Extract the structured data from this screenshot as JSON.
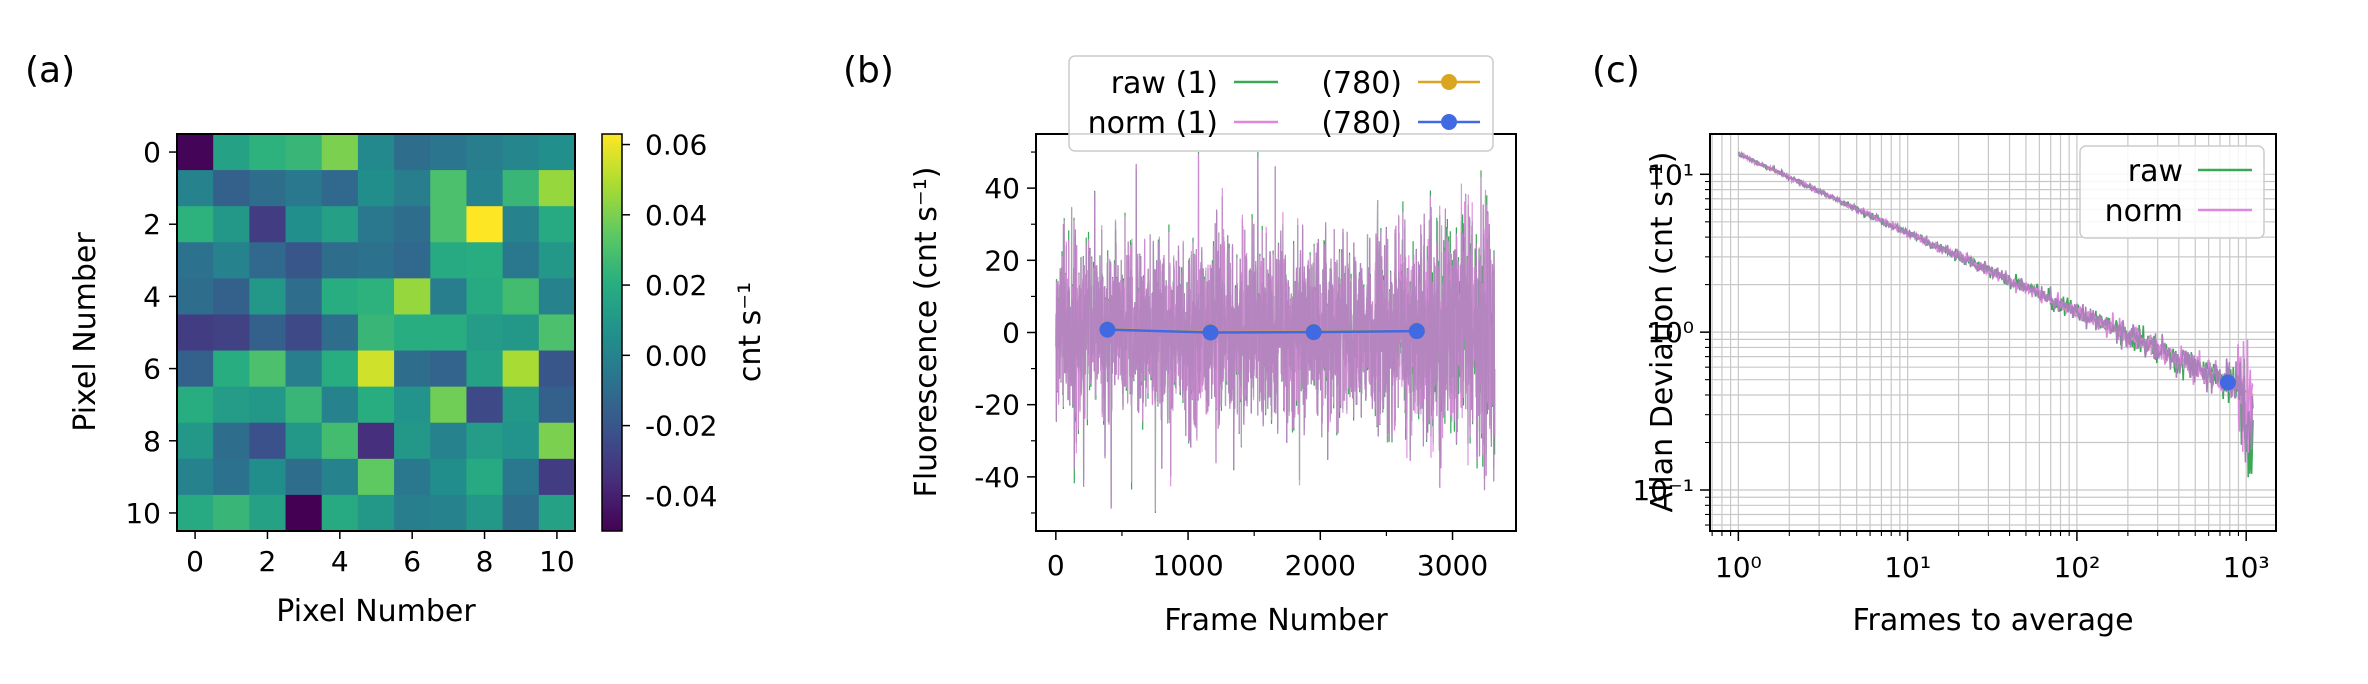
{
  "panel_labels": [
    "(a)",
    "(b)",
    "(c)"
  ],
  "colors": {
    "raw": "#3aa856",
    "norm": "#dd88dd",
    "raw_avg": "#daa520",
    "norm_avg": "#4169e1",
    "trace": "#a981b8"
  },
  "chart_data": [
    {
      "type": "heatmap",
      "panel": "(a)",
      "xlabel": "Pixel Number",
      "ylabel": "Pixel Number",
      "xticks": [
        "0",
        "2",
        "4",
        "6",
        "8",
        "10"
      ],
      "yticks": [
        "0",
        "2",
        "4",
        "6",
        "8",
        "10"
      ],
      "colorbar_label": "cnt s⁻¹",
      "colorbar_ticks": [
        "0.06",
        "0.04",
        "0.02",
        "0.00",
        "-0.02",
        "-0.04"
      ],
      "colorbar_tick_values": [
        0.06,
        0.04,
        0.02,
        0.0,
        -0.02,
        -0.04
      ],
      "vmin": -0.05,
      "vmax": 0.063,
      "grid": [
        [
          -0.049,
          0.015,
          0.022,
          0.025,
          0.04,
          0.003,
          -0.01,
          -0.006,
          -0.002,
          0.002,
          0.006
        ],
        [
          0.0,
          -0.015,
          -0.01,
          -0.005,
          -0.012,
          0.005,
          -0.002,
          0.03,
          0.0,
          0.025,
          0.045
        ],
        [
          0.022,
          0.01,
          -0.03,
          0.006,
          0.014,
          -0.005,
          -0.01,
          0.03,
          0.063,
          0.0,
          0.018
        ],
        [
          -0.008,
          0.0,
          -0.012,
          -0.02,
          -0.01,
          -0.008,
          -0.012,
          0.018,
          0.02,
          -0.005,
          0.01
        ],
        [
          -0.01,
          -0.015,
          0.01,
          -0.01,
          0.02,
          0.022,
          0.045,
          -0.002,
          0.018,
          0.028,
          0.0
        ],
        [
          -0.03,
          -0.028,
          -0.015,
          -0.025,
          -0.01,
          0.025,
          0.02,
          0.02,
          0.012,
          0.01,
          0.03
        ],
        [
          -0.015,
          0.02,
          0.03,
          -0.002,
          0.02,
          0.055,
          -0.01,
          -0.014,
          0.015,
          0.048,
          -0.02
        ],
        [
          0.02,
          0.012,
          0.01,
          0.025,
          0.0,
          0.02,
          0.008,
          0.038,
          -0.025,
          0.01,
          -0.015
        ],
        [
          0.01,
          -0.01,
          -0.022,
          0.01,
          0.028,
          -0.035,
          0.01,
          0.0,
          0.012,
          0.008,
          0.04
        ],
        [
          0.0,
          -0.008,
          0.005,
          -0.01,
          0.0,
          0.035,
          -0.005,
          0.005,
          0.018,
          -0.005,
          -0.03
        ],
        [
          0.018,
          0.025,
          0.015,
          -0.05,
          0.018,
          0.01,
          -0.002,
          0.0,
          0.01,
          -0.01,
          0.015
        ]
      ]
    },
    {
      "type": "line",
      "panel": "(b)",
      "xlabel": "Frame Number",
      "ylabel": "Fluorescence (cnt s⁻¹)",
      "xlim": [
        -150,
        3480
      ],
      "ylim": [
        -55,
        55
      ],
      "xticks": [
        "0",
        "1000",
        "2000",
        "3000"
      ],
      "xtick_values": [
        0,
        1000,
        2000,
        3000
      ],
      "yticks": [
        "40",
        "20",
        "0",
        "-20",
        "-40"
      ],
      "ytick_values": [
        40,
        20,
        0,
        -20,
        -40
      ],
      "frames": 3320,
      "noise_sigma": 12,
      "legend": [
        {
          "label": "raw (1)",
          "series": "raw"
        },
        {
          "label": "(780)",
          "series": "raw_avg"
        },
        {
          "label": "norm (1)",
          "series": "norm"
        },
        {
          "label": "(780)",
          "series": "norm_avg"
        }
      ],
      "series": [
        {
          "name": "(780) raw",
          "x": [
            390,
            1170,
            1950,
            2730
          ],
          "y": [
            0.9,
            0.1,
            0.2,
            0.5
          ]
        },
        {
          "name": "(780) norm",
          "x": [
            390,
            1170,
            1950,
            2730
          ],
          "y": [
            0.8,
            0.0,
            0.1,
            0.4
          ]
        }
      ]
    },
    {
      "type": "line",
      "panel": "(c)",
      "xscale": "log",
      "yscale": "log",
      "xlabel": "Frames to average",
      "ylabel": "Allan Deviation (cnt s⁻¹)",
      "xlim": [
        0.68,
        1500
      ],
      "ylim": [
        0.055,
        18
      ],
      "xticks": [
        "10⁰",
        "10¹",
        "10²",
        "10³"
      ],
      "xtick_values": [
        1,
        10,
        100,
        1000
      ],
      "yticks": [
        "10¹",
        "10⁰",
        "10⁻¹"
      ],
      "ytick_values": [
        10,
        1,
        0.1
      ],
      "legend": [
        {
          "label": "raw",
          "series": "raw"
        },
        {
          "label": "norm",
          "series": "norm"
        }
      ],
      "series": [
        {
          "name": "raw",
          "x0": 1,
          "y0": 13.5,
          "slope": -0.5,
          "x_end": 1100
        },
        {
          "name": "norm",
          "x0": 1,
          "y0": 13.5,
          "slope": -0.5,
          "x_end": 1100
        },
        {
          "name": "fit",
          "x": [
            1,
            1100
          ],
          "y": [
            13.5,
            0.4
          ]
        },
        {
          "name": "marker (780)",
          "x": [
            780
          ],
          "y": [
            0.48
          ]
        }
      ]
    }
  ]
}
